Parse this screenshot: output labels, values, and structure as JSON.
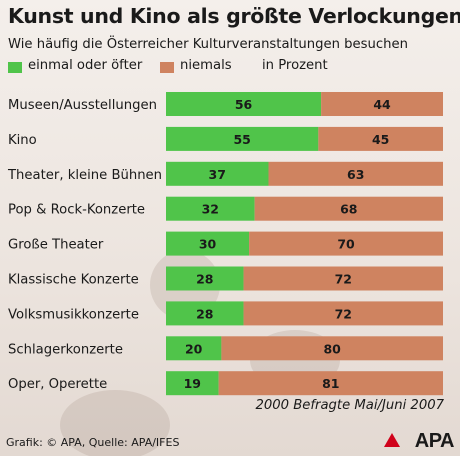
{
  "header": {
    "title": "Kunst und Kino als größte Verlockungen",
    "subtitle": "Wie häufig die Österreicher Kulturveranstaltungen besuchen"
  },
  "legend": {
    "items": [
      {
        "label": "einmal oder öfter",
        "color": "#50c44a"
      },
      {
        "label": "niemals",
        "color": "#cf8360"
      },
      {
        "label": "in Prozent"
      }
    ]
  },
  "chart_data": {
    "type": "bar",
    "orientation": "horizontal",
    "stacked": true,
    "categories": [
      "Museen/Ausstellungen",
      "Kino",
      "Theater, kleine Bühnen",
      "Pop & Rock-Konzerte",
      "Große Theater",
      "Klassische Konzerte",
      "Volksmusikkonzerte",
      "Schlagerkonzerte",
      "Oper, Operette"
    ],
    "series": [
      {
        "name": "einmal oder öfter",
        "color": "#50c44a",
        "values": [
          56,
          55,
          37,
          32,
          30,
          28,
          28,
          20,
          19
        ]
      },
      {
        "name": "niemals",
        "color": "#cf8360",
        "values": [
          44,
          45,
          63,
          68,
          70,
          72,
          72,
          80,
          81
        ]
      }
    ],
    "xlim": [
      0,
      100
    ],
    "unit": "in Prozent",
    "grid": false,
    "legend_position": "top-left",
    "data_labels": true
  },
  "footer": {
    "note": "2000 Befragte Mai/Juni 2007",
    "source": "Grafik: © APA, Quelle: APA/IFES",
    "logo_text": "APA"
  }
}
